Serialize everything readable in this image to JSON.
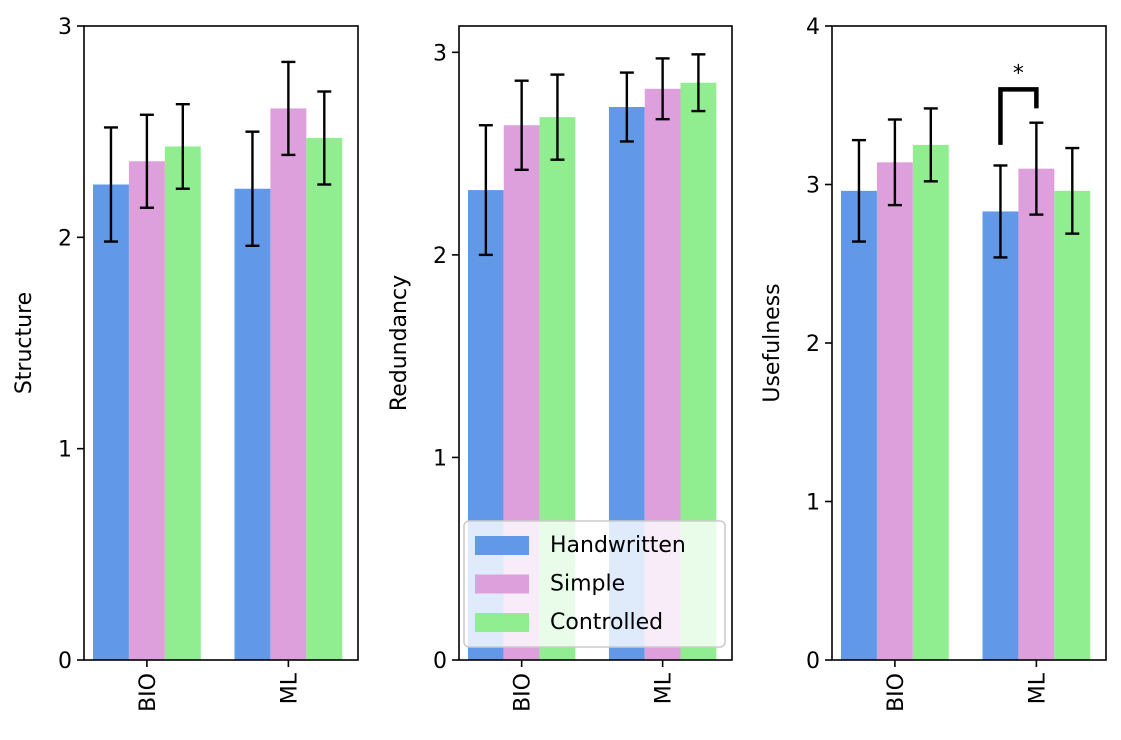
{
  "colors": {
    "Handwritten": "#6199e8",
    "Simple": "#dda0dd",
    "Controlled": "#90ee90",
    "error_bar": "#000000"
  },
  "legend": {
    "location": "lower-center of middle panel",
    "entries": [
      "Handwritten",
      "Simple",
      "Controlled"
    ]
  },
  "chart_data": [
    {
      "type": "bar",
      "title": "",
      "xlabel": "",
      "ylabel": "Structure",
      "categories": [
        "BIO",
        "ML"
      ],
      "ylim": [
        0,
        3
      ],
      "yticks": [
        "0",
        "1",
        "2",
        "3"
      ],
      "series": [
        {
          "name": "Handwritten",
          "values": [
            2.25,
            2.23
          ],
          "err": [
            0.27,
            0.27
          ]
        },
        {
          "name": "Simple",
          "values": [
            2.36,
            2.61
          ],
          "err": [
            0.22,
            0.22
          ]
        },
        {
          "name": "Controlled",
          "values": [
            2.43,
            2.47
          ],
          "err": [
            0.2,
            0.22
          ]
        }
      ],
      "annotations": []
    },
    {
      "type": "bar",
      "title": "",
      "xlabel": "",
      "ylabel": "Redundancy",
      "categories": [
        "BIO",
        "ML"
      ],
      "ylim": [
        0,
        3.13
      ],
      "yticks": [
        "0",
        "1",
        "2",
        "3"
      ],
      "series": [
        {
          "name": "Handwritten",
          "values": [
            2.32,
            2.73
          ],
          "err": [
            0.32,
            0.17
          ]
        },
        {
          "name": "Simple",
          "values": [
            2.64,
            2.82
          ],
          "err": [
            0.22,
            0.15
          ]
        },
        {
          "name": "Controlled",
          "values": [
            2.68,
            2.85
          ],
          "err": [
            0.21,
            0.14
          ]
        }
      ],
      "annotations": []
    },
    {
      "type": "bar",
      "title": "",
      "xlabel": "",
      "ylabel": "Usefulness",
      "categories": [
        "BIO",
        "ML"
      ],
      "ylim": [
        0,
        4
      ],
      "yticks": [
        "0",
        "1",
        "2",
        "3",
        "4"
      ],
      "series": [
        {
          "name": "Handwritten",
          "values": [
            2.96,
            2.83
          ],
          "err": [
            0.32,
            0.29
          ]
        },
        {
          "name": "Simple",
          "values": [
            3.14,
            3.1
          ],
          "err": [
            0.27,
            0.29
          ]
        },
        {
          "name": "Controlled",
          "values": [
            3.25,
            2.96
          ],
          "err": [
            0.23,
            0.27
          ]
        }
      ],
      "annotations": [
        {
          "label": "*",
          "category": "ML",
          "from_series": "Handwritten",
          "to_series": "Simple",
          "bracket_y_low": 3.25,
          "bracket_y_high": 3.6
        }
      ]
    }
  ]
}
